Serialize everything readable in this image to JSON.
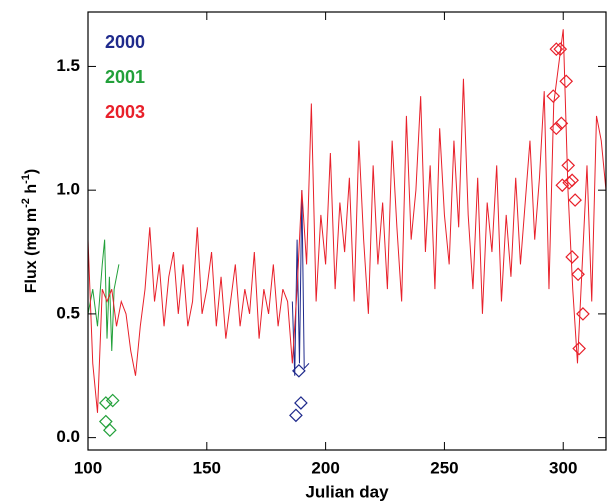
{
  "chart_data": {
    "type": "line",
    "xlabel": "Julian day",
    "ylabel": [
      "Flux (mg m",
      "-2",
      " h",
      "-1",
      ")"
    ],
    "xlim": [
      100,
      318
    ],
    "ylim": [
      -0.05,
      1.72
    ],
    "xticks": [
      100,
      150,
      200,
      250,
      300
    ],
    "yticks": [
      {
        "value": 0,
        "label": "0.0"
      },
      0.5,
      {
        "value": 1,
        "label": "1.0"
      },
      1.5
    ],
    "legend": "upper left",
    "series": [
      {
        "name": "2000",
        "color": "#1f2a8c",
        "x": [
          186,
          187,
          188,
          189,
          190,
          191,
          193
        ],
        "values": [
          0.55,
          0.25,
          0.8,
          0.3,
          1.0,
          0.28,
          0.3
        ],
        "points": {
          "x": [
            187.5,
            189.6,
            188.75
          ],
          "values": [
            0.09,
            0.14,
            0.27
          ]
        }
      },
      {
        "name": "2001",
        "color": "#22a03a",
        "x": [
          100,
          102,
          104,
          106,
          107,
          108,
          109,
          110,
          111,
          113
        ],
        "values": [
          0.5,
          0.6,
          0.45,
          0.7,
          0.8,
          0.4,
          0.65,
          0.35,
          0.6,
          0.7
        ],
        "points": {
          "x": [
            107.5,
            110.4,
            107.5,
            109.2
          ],
          "values": [
            0.14,
            0.15,
            0.065,
            0.03
          ]
        }
      },
      {
        "name": "2003",
        "color": "#e8202a",
        "x": [
          100,
          102,
          104,
          106,
          108,
          110,
          112,
          114,
          116,
          118,
          120,
          122,
          124,
          126,
          128,
          130,
          132,
          134,
          136,
          138,
          140,
          142,
          144,
          146,
          148,
          150,
          152,
          154,
          156,
          158,
          160,
          162,
          164,
          166,
          168,
          170,
          172,
          174,
          176,
          178,
          180,
          182,
          184,
          186,
          188,
          190,
          192,
          194,
          196,
          198,
          200,
          202,
          204,
          206,
          208,
          210,
          212,
          214,
          216,
          218,
          220,
          222,
          224,
          226,
          228,
          230,
          232,
          234,
          236,
          238,
          240,
          242,
          244,
          246,
          248,
          250,
          252,
          254,
          256,
          258,
          260,
          262,
          264,
          266,
          268,
          270,
          272,
          274,
          276,
          278,
          280,
          282,
          284,
          286,
          288,
          290,
          292,
          294,
          296,
          298,
          300,
          302,
          304,
          306,
          308,
          310,
          312,
          314,
          316,
          318
        ],
        "values": [
          0.8,
          0.3,
          0.1,
          0.6,
          0.55,
          0.6,
          0.45,
          0.55,
          0.5,
          0.35,
          0.25,
          0.45,
          0.6,
          0.85,
          0.55,
          0.7,
          0.45,
          0.65,
          0.75,
          0.5,
          0.7,
          0.45,
          0.55,
          0.85,
          0.5,
          0.6,
          0.75,
          0.45,
          0.65,
          0.4,
          0.55,
          0.7,
          0.45,
          0.6,
          0.5,
          0.75,
          0.4,
          0.6,
          0.5,
          0.7,
          0.45,
          0.6,
          0.55,
          0.3,
          0.6,
          1.0,
          0.7,
          1.35,
          0.55,
          0.9,
          0.7,
          1.15,
          0.6,
          0.95,
          0.75,
          1.05,
          0.55,
          1.2,
          0.8,
          0.5,
          1.1,
          0.7,
          0.95,
          0.6,
          1.2,
          0.85,
          0.55,
          1.3,
          0.8,
          1.0,
          1.38,
          0.75,
          1.1,
          0.6,
          1.25,
          0.9,
          0.7,
          1.2,
          0.85,
          1.45,
          0.9,
          0.6,
          1.05,
          0.5,
          0.95,
          0.75,
          1.1,
          0.55,
          0.9,
          0.65,
          1.05,
          0.7,
          0.95,
          1.2,
          0.8,
          1.05,
          1.4,
          0.6,
          1.35,
          1.5,
          1.65,
          1.0,
          0.6,
          0.3,
          0.7,
          1.1,
          0.55,
          1.3,
          1.2,
          1.0
        ],
        "points": {
          "x": [
            297.1,
            298.75,
            295.8,
            301.25,
            297.1,
            299.2,
            299.6,
            302.1,
            302.5,
            303.75,
            303.75,
            305,
            306.25,
            308.3,
            306.7
          ],
          "values": [
            1.57,
            1.57,
            1.38,
            1.44,
            1.25,
            1.27,
            1.02,
            1.1,
            1.03,
            1.04,
            0.73,
            0.96,
            0.66,
            0.5,
            0.36
          ]
        }
      }
    ]
  }
}
